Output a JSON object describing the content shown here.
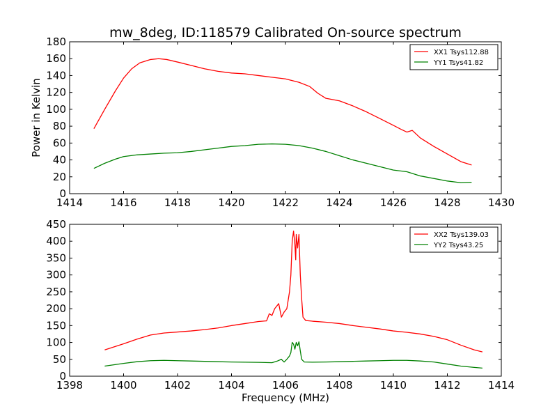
{
  "figure": {
    "title": "mw_8deg, ID:118579 Calibrated On-source spectrum"
  },
  "chart_data": [
    {
      "type": "line",
      "title": "mw_8deg, ID:118579 Calibrated On-source spectrum",
      "xlabel": "",
      "ylabel": "Power in Kelvin",
      "xlim": [
        1414,
        1430
      ],
      "ylim": [
        0,
        180
      ],
      "xticks": [
        1414,
        1416,
        1418,
        1420,
        1422,
        1424,
        1426,
        1428,
        1430
      ],
      "yticks": [
        0,
        20,
        40,
        60,
        80,
        100,
        120,
        140,
        160,
        180
      ],
      "grid": false,
      "legend_position": "top-right",
      "series": [
        {
          "name": "XX1 Tsys112.88",
          "color": "#ff0000",
          "x": [
            1414.9,
            1415.3,
            1415.7,
            1416.0,
            1416.3,
            1416.6,
            1417.0,
            1417.3,
            1417.6,
            1418.0,
            1418.5,
            1419.0,
            1419.5,
            1420.0,
            1420.5,
            1421.0,
            1421.5,
            1422.0,
            1422.5,
            1422.9,
            1423.2,
            1423.5,
            1424.0,
            1424.5,
            1425.0,
            1425.5,
            1426.0,
            1426.3,
            1426.5,
            1426.7,
            1427.0,
            1427.5,
            1428.0,
            1428.5,
            1428.9
          ],
          "values": [
            77,
            100,
            122,
            137,
            148,
            155,
            159,
            160,
            159,
            156,
            152,
            148,
            145,
            143,
            142,
            140,
            138,
            136,
            132,
            127,
            119,
            113,
            110,
            104,
            97,
            89,
            81,
            76,
            73,
            75,
            66,
            56,
            47,
            38,
            34
          ]
        },
        {
          "name": "YY1 Tsys41.82",
          "color": "#008000",
          "x": [
            1414.9,
            1415.3,
            1415.7,
            1416.0,
            1416.5,
            1417.0,
            1417.5,
            1418.0,
            1418.5,
            1419.0,
            1419.5,
            1420.0,
            1420.5,
            1421.0,
            1421.5,
            1422.0,
            1422.5,
            1423.0,
            1423.5,
            1424.0,
            1424.5,
            1425.0,
            1425.5,
            1426.0,
            1426.5,
            1427.0,
            1427.5,
            1428.0,
            1428.5,
            1428.9
          ],
          "values": [
            30,
            36,
            41,
            44,
            46,
            47,
            48,
            48.5,
            50,
            52,
            54,
            56,
            57,
            58.5,
            59,
            58.5,
            57,
            54,
            50,
            45,
            40,
            36,
            32,
            28,
            26,
            21,
            18,
            15,
            13,
            13.5
          ]
        }
      ]
    },
    {
      "type": "line",
      "title": "",
      "xlabel": "Frequency (MHz)",
      "ylabel": "",
      "xlim": [
        1398,
        1414
      ],
      "ylim": [
        0,
        450
      ],
      "xticks": [
        1398,
        1400,
        1402,
        1404,
        1406,
        1408,
        1410,
        1412,
        1414
      ],
      "yticks": [
        0,
        50,
        100,
        150,
        200,
        250,
        300,
        350,
        400,
        450
      ],
      "grid": false,
      "legend_position": "top-right",
      "series": [
        {
          "name": "XX2 Tsys139.03",
          "color": "#ff0000",
          "x": [
            1399.3,
            1400.0,
            1400.5,
            1401.0,
            1401.5,
            1402.0,
            1402.5,
            1403.0,
            1403.5,
            1404.0,
            1404.5,
            1405.0,
            1405.3,
            1405.4,
            1405.5,
            1405.6,
            1405.75,
            1405.85,
            1405.95,
            1406.05,
            1406.15,
            1406.2,
            1406.25,
            1406.3,
            1406.35,
            1406.38,
            1406.4,
            1406.45,
            1406.5,
            1406.55,
            1406.6,
            1406.65,
            1406.75,
            1407.0,
            1407.5,
            1408.0,
            1408.5,
            1409.0,
            1409.5,
            1410.0,
            1410.5,
            1411.0,
            1411.5,
            1412.0,
            1412.5,
            1413.0,
            1413.3
          ],
          "values": [
            78,
            96,
            110,
            122,
            128,
            131,
            134,
            138,
            143,
            150,
            156,
            162,
            164,
            185,
            180,
            200,
            215,
            175,
            190,
            200,
            250,
            300,
            400,
            430,
            390,
            345,
            420,
            380,
            420,
            300,
            230,
            175,
            165,
            163,
            160,
            156,
            150,
            145,
            140,
            134,
            130,
            125,
            118,
            108,
            92,
            78,
            72
          ]
        },
        {
          "name": "YY2 Tsys43.25",
          "color": "#008000",
          "x": [
            1399.3,
            1400.0,
            1400.5,
            1401.0,
            1401.5,
            1402.0,
            1402.5,
            1403.0,
            1403.5,
            1404.0,
            1404.5,
            1405.0,
            1405.5,
            1405.7,
            1405.85,
            1405.95,
            1406.05,
            1406.15,
            1406.2,
            1406.25,
            1406.3,
            1406.35,
            1406.4,
            1406.45,
            1406.5,
            1406.55,
            1406.6,
            1406.7,
            1407.0,
            1407.5,
            1408.0,
            1408.5,
            1409.0,
            1409.5,
            1410.0,
            1410.5,
            1411.0,
            1411.5,
            1412.0,
            1412.5,
            1413.0,
            1413.3
          ],
          "values": [
            30,
            38,
            43,
            46,
            47,
            46,
            45,
            44,
            43,
            42,
            41.5,
            41,
            40,
            45,
            50,
            42,
            50,
            60,
            70,
            100,
            95,
            80,
            100,
            90,
            102,
            75,
            50,
            42,
            41.5,
            42,
            43,
            44,
            45,
            46,
            47,
            47,
            45,
            42,
            36,
            30,
            26,
            24
          ]
        }
      ]
    }
  ]
}
